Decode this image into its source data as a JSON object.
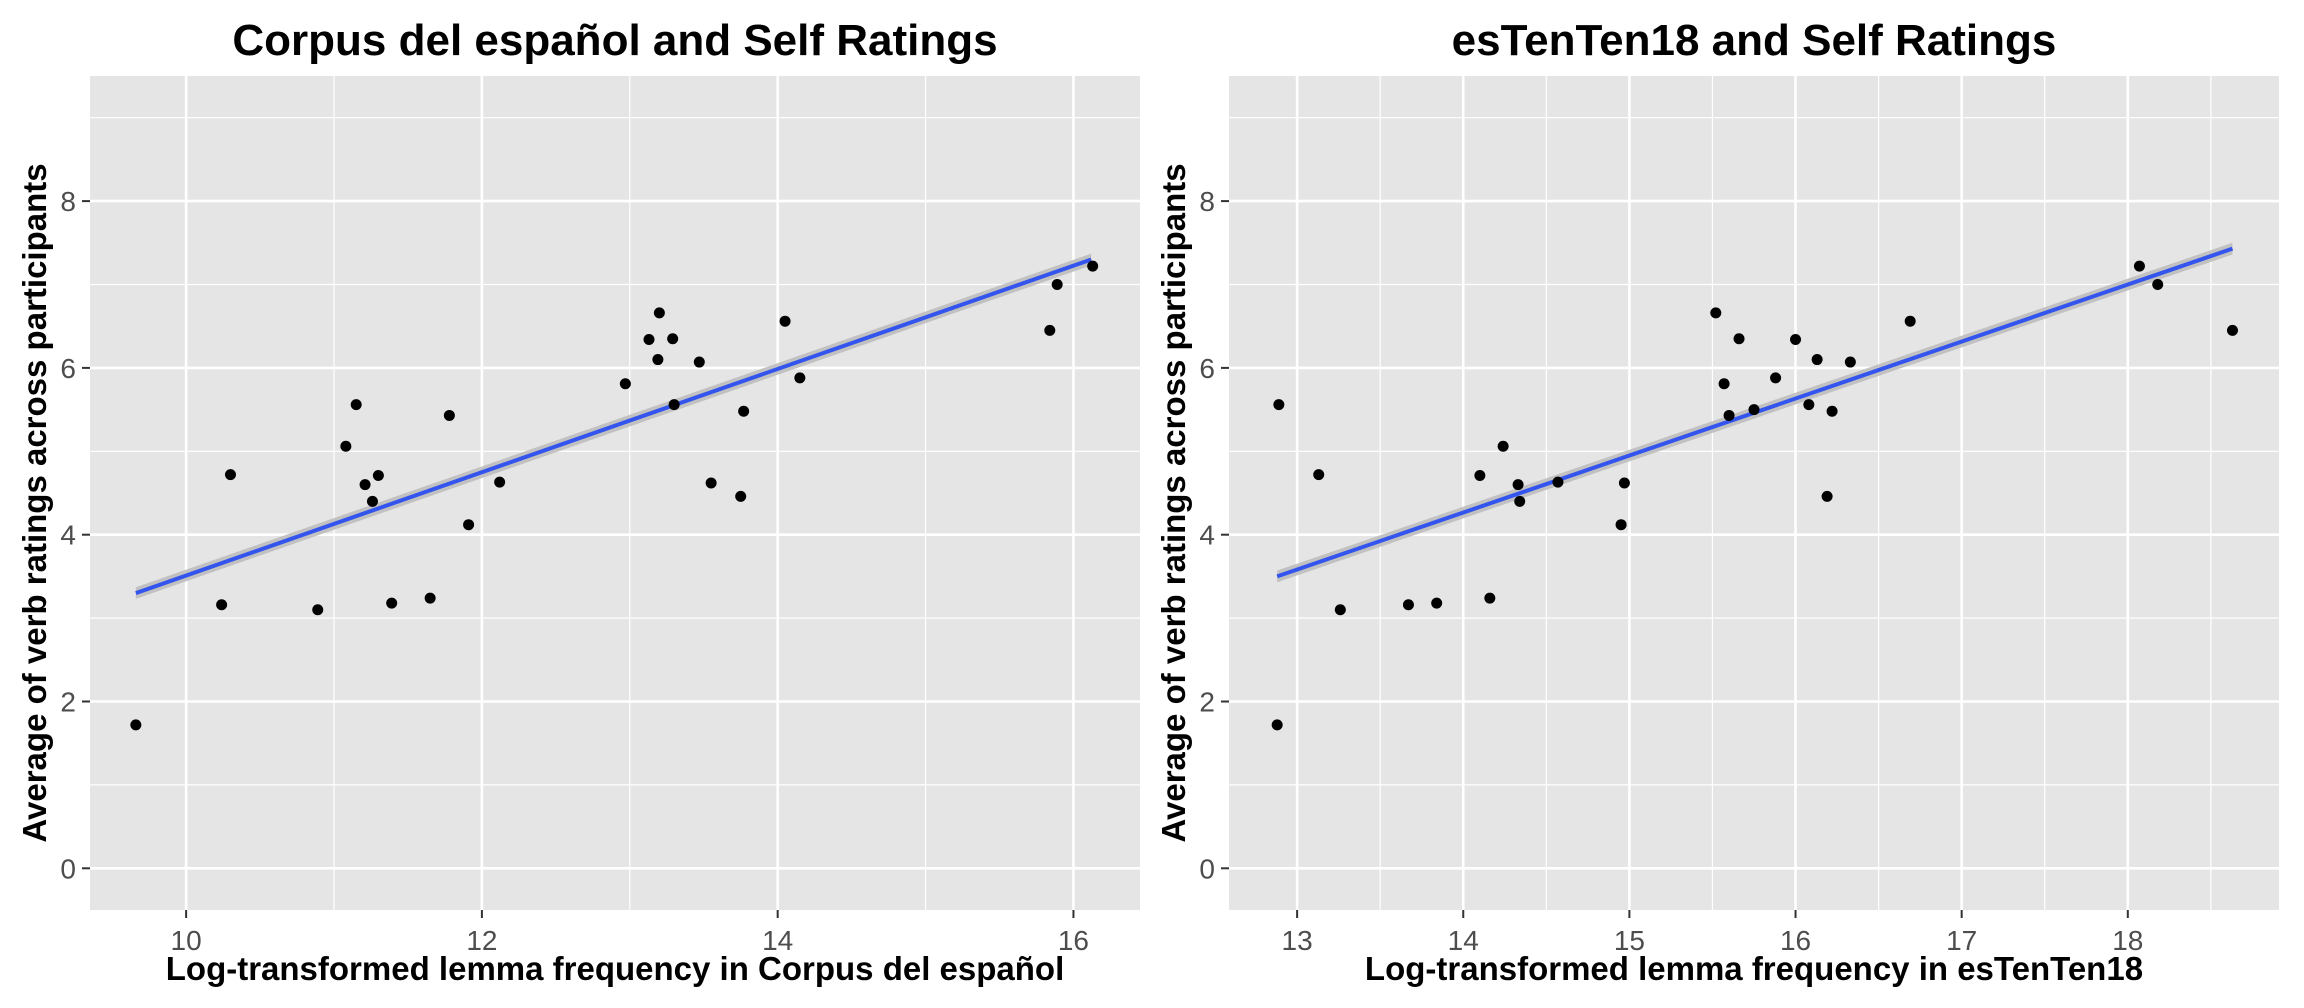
{
  "colors": {
    "panel_background": "#e5e5e5",
    "grid": "#ffffff",
    "point": "#000000",
    "fit_line": "#3355ee",
    "confidence_band": "#bdbdbd",
    "tick_text": "#4d4d4d"
  },
  "chart_data": [
    {
      "type": "scatter",
      "title": "Corpus del español and Self Ratings",
      "xlabel": "Log-transformed lemma frequency in Corpus del español",
      "ylabel": "Average of verb ratings across participants",
      "xlim": [
        9.35,
        16.45
      ],
      "ylim": [
        -0.5,
        9.5
      ],
      "xticks": [
        10,
        12,
        14,
        16
      ],
      "yticks": [
        0,
        2,
        4,
        6,
        8
      ],
      "grid": true,
      "trend": {
        "x": [
          9.66,
          16.12
        ],
        "y": [
          3.3,
          7.3
        ],
        "band": 0.07
      },
      "points": [
        {
          "x": 9.66,
          "y": 1.72
        },
        {
          "x": 10.24,
          "y": 3.16
        },
        {
          "x": 10.3,
          "y": 4.72
        },
        {
          "x": 10.89,
          "y": 3.1
        },
        {
          "x": 11.08,
          "y": 5.06
        },
        {
          "x": 11.15,
          "y": 5.56
        },
        {
          "x": 11.21,
          "y": 4.6
        },
        {
          "x": 11.26,
          "y": 4.4
        },
        {
          "x": 11.3,
          "y": 4.71
        },
        {
          "x": 11.39,
          "y": 3.18
        },
        {
          "x": 11.65,
          "y": 3.24
        },
        {
          "x": 11.78,
          "y": 5.43
        },
        {
          "x": 11.91,
          "y": 4.12
        },
        {
          "x": 12.12,
          "y": 4.63
        },
        {
          "x": 12.97,
          "y": 5.81
        },
        {
          "x": 13.13,
          "y": 6.34
        },
        {
          "x": 13.19,
          "y": 6.1
        },
        {
          "x": 13.2,
          "y": 6.66
        },
        {
          "x": 13.29,
          "y": 6.35
        },
        {
          "x": 13.3,
          "y": 5.56
        },
        {
          "x": 13.47,
          "y": 6.07
        },
        {
          "x": 13.55,
          "y": 4.62
        },
        {
          "x": 13.75,
          "y": 4.46
        },
        {
          "x": 13.77,
          "y": 5.48
        },
        {
          "x": 14.05,
          "y": 6.56
        },
        {
          "x": 14.15,
          "y": 5.88
        },
        {
          "x": 15.84,
          "y": 6.45
        },
        {
          "x": 15.89,
          "y": 7.0
        },
        {
          "x": 16.13,
          "y": 7.22
        }
      ]
    },
    {
      "type": "scatter",
      "title": "esTenTen18 and Self Ratings",
      "xlabel": "Log-transformed lemma frequency in esTenTen18",
      "ylabel": "Average of verb ratings across participants",
      "xlim": [
        12.59,
        18.91
      ],
      "ylim": [
        -0.5,
        9.5
      ],
      "xticks": [
        13,
        14,
        15,
        16,
        17,
        18
      ],
      "yticks": [
        0,
        2,
        4,
        6,
        8
      ],
      "grid": true,
      "trend": {
        "x": [
          12.88,
          18.63
        ],
        "y": [
          3.5,
          7.43
        ],
        "band": 0.07
      },
      "points": [
        {
          "x": 12.88,
          "y": 1.72
        },
        {
          "x": 12.89,
          "y": 5.56
        },
        {
          "x": 13.13,
          "y": 4.72
        },
        {
          "x": 13.26,
          "y": 3.1
        },
        {
          "x": 13.67,
          "y": 3.16
        },
        {
          "x": 13.84,
          "y": 3.18
        },
        {
          "x": 14.1,
          "y": 4.71
        },
        {
          "x": 14.16,
          "y": 3.24
        },
        {
          "x": 14.24,
          "y": 5.06
        },
        {
          "x": 14.33,
          "y": 4.6
        },
        {
          "x": 14.34,
          "y": 4.4
        },
        {
          "x": 14.57,
          "y": 4.63
        },
        {
          "x": 14.95,
          "y": 4.12
        },
        {
          "x": 14.97,
          "y": 4.62
        },
        {
          "x": 15.52,
          "y": 6.66
        },
        {
          "x": 15.57,
          "y": 5.81
        },
        {
          "x": 15.6,
          "y": 5.43
        },
        {
          "x": 15.66,
          "y": 6.35
        },
        {
          "x": 15.75,
          "y": 5.5
        },
        {
          "x": 15.88,
          "y": 5.88
        },
        {
          "x": 16.0,
          "y": 6.34
        },
        {
          "x": 16.08,
          "y": 5.56
        },
        {
          "x": 16.13,
          "y": 6.1
        },
        {
          "x": 16.19,
          "y": 4.46
        },
        {
          "x": 16.22,
          "y": 5.48
        },
        {
          "x": 16.33,
          "y": 6.07
        },
        {
          "x": 16.69,
          "y": 6.56
        },
        {
          "x": 18.07,
          "y": 7.22
        },
        {
          "x": 18.18,
          "y": 7.0
        },
        {
          "x": 18.63,
          "y": 6.45
        }
      ]
    }
  ]
}
